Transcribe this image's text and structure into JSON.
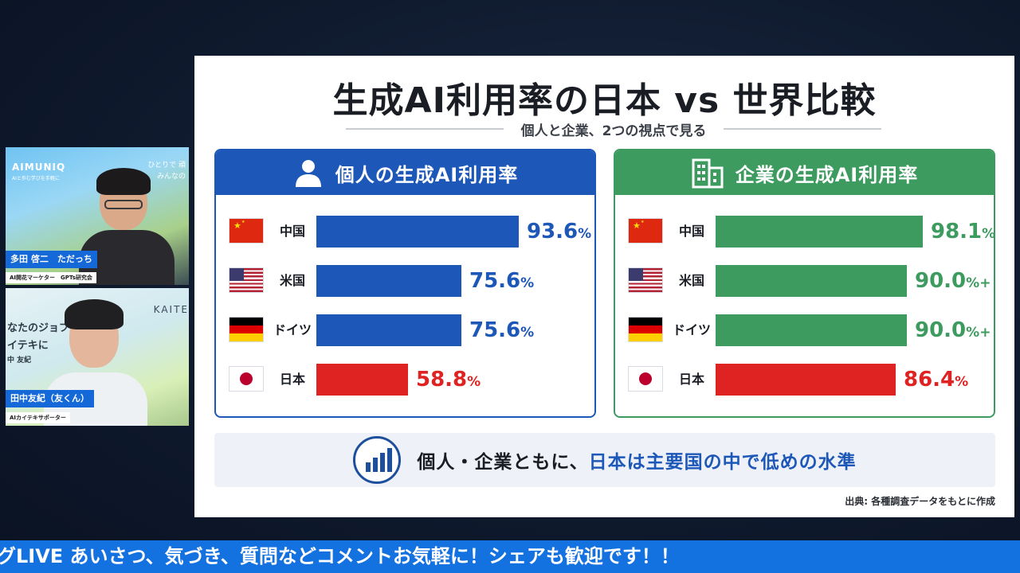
{
  "participants": [
    {
      "brand": "AIMUNIQ",
      "brand_sub": "AIと歩む学びを手軽に",
      "side_text_1": "ひとりで 頑",
      "side_text_2": "みんなの",
      "name": "多田 啓二　ただっち",
      "role": "AI開花マーケター　GPTs研究会"
    },
    {
      "side_text": "KAITE",
      "bg_text_1": "なたのジョブ",
      "bg_text_2": "イテキに",
      "bg_text_3": "中 友紀",
      "name": "田中友紀（友くん）",
      "role": "AIカイテキサポーター"
    }
  ],
  "slide": {
    "title": "生成AI利用率の日本 vs 世界比較",
    "subtitle": "個人と企業、2つの視点で見る",
    "panels": [
      {
        "title": "個人の生成AI利用率",
        "icon": "person-icon",
        "color": "#1d57b8",
        "rows": [
          {
            "country": "中国",
            "flag": "china-flag-icon",
            "value": 93.6,
            "display": "93.6",
            "unit": "%",
            "bar_color": "#1d57b8"
          },
          {
            "country": "米国",
            "flag": "usa-flag-icon",
            "value": 75.6,
            "display": "75.6",
            "unit": "%",
            "bar_color": "#1d57b8"
          },
          {
            "country": "ドイツ",
            "flag": "germany-flag-icon",
            "value": 75.6,
            "display": "75.6",
            "unit": "%",
            "bar_color": "#1d57b8"
          },
          {
            "country": "日本",
            "flag": "japan-flag-icon",
            "value": 58.8,
            "display": "58.8",
            "unit": "%",
            "bar_color": "#df2323"
          }
        ]
      },
      {
        "title": "企業の生成AI利用率",
        "icon": "building-icon",
        "color": "#3d9b5f",
        "rows": [
          {
            "country": "中国",
            "flag": "china-flag-icon",
            "value": 98.1,
            "display": "98.1",
            "unit": "%",
            "bar_color": "#3d9b5f"
          },
          {
            "country": "米国",
            "flag": "usa-flag-icon",
            "value": 90.0,
            "display": "90.0",
            "unit": "%+",
            "bar_color": "#3d9b5f"
          },
          {
            "country": "ドイツ",
            "flag": "germany-flag-icon",
            "value": 90.0,
            "display": "90.0",
            "unit": "%+",
            "bar_color": "#3d9b5f"
          },
          {
            "country": "日本",
            "flag": "japan-flag-icon",
            "value": 86.4,
            "display": "86.4",
            "unit": "%",
            "bar_color": "#df2323"
          }
        ]
      }
    ],
    "summary_prefix": "個人・企業ともに、",
    "summary_accent": "日本は主要国の中で低めの水準",
    "summary_icon": "bar-chart-icon",
    "source": "出典: 各種調査データをもとに作成"
  },
  "ticker": "グLIVE あいさつ、気づき、質問などコメントお気軽に！シェアも歓迎です！！",
  "colors": {
    "accent_blue": "#1d57b8",
    "accent_green": "#3d9b5f",
    "japan_red": "#df2323",
    "ticker_blue": "#1471e0"
  }
}
